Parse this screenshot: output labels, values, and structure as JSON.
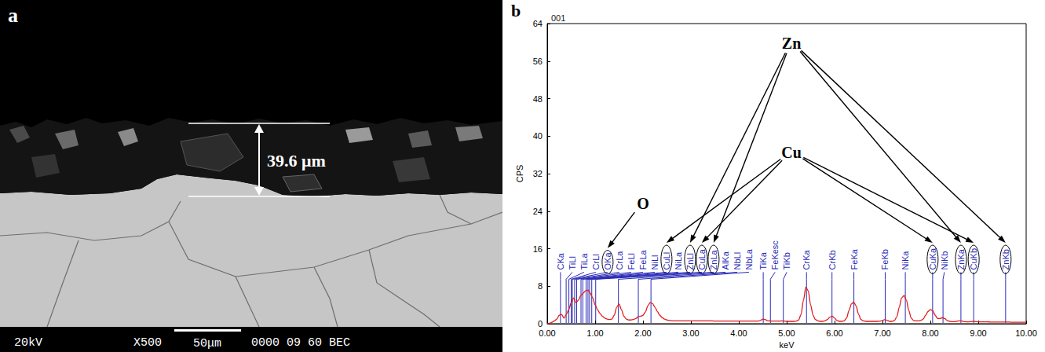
{
  "image_panel": {
    "panel_label": "a",
    "measurement": "39.6 μm",
    "info_bar": {
      "voltage": "20kV",
      "magnification": "X500",
      "scale_bar": "50μm",
      "code": "0000 09 60 BEC"
    }
  },
  "chart_data": {
    "type": "line",
    "panel_label": "b",
    "title": "001",
    "x_label": "keV",
    "y_label": "CPS",
    "color": "#e31a1c",
    "grid": false,
    "xlim": [
      0,
      10
    ],
    "xticks": [
      {
        "value": 0,
        "label": "0.00"
      },
      {
        "value": 1,
        "label": "1.00"
      },
      {
        "value": 2,
        "label": "2.00"
      },
      {
        "value": 3,
        "label": "3.00"
      },
      {
        "value": 4,
        "label": "4.00"
      },
      {
        "value": 5,
        "label": "5.00"
      },
      {
        "value": 6,
        "label": "6.00"
      },
      {
        "value": 7,
        "label": "7.00"
      },
      {
        "value": 8,
        "label": "8.00"
      },
      {
        "value": 9,
        "label": "9.00"
      },
      {
        "value": 10,
        "label": "10.00"
      }
    ],
    "ylim": [
      0,
      64
    ],
    "yticks": [
      0,
      8,
      16,
      24,
      32,
      40,
      48,
      56,
      64
    ],
    "x": [
      0,
      0.05,
      0.1,
      0.15,
      0.2,
      0.25,
      0.3,
      0.35,
      0.4,
      0.45,
      0.5,
      0.55,
      0.6,
      0.65,
      0.7,
      0.75,
      0.8,
      0.85,
      0.9,
      0.95,
      1,
      1.05,
      1.1,
      1.15,
      1.2,
      1.25,
      1.3,
      1.35,
      1.4,
      1.45,
      1.5,
      1.55,
      1.6,
      1.65,
      1.7,
      1.75,
      1.8,
      1.85,
      1.9,
      1.95,
      2,
      2.05,
      2.1,
      2.15,
      2.2,
      2.25,
      2.3,
      2.35,
      2.4,
      2.45,
      2.5,
      2.55,
      2.6,
      2.65,
      2.7,
      2.75,
      2.8,
      2.85,
      2.9,
      2.95,
      3,
      3.05,
      3.1,
      3.15,
      3.2,
      3.25,
      3.3,
      3.35,
      3.4,
      3.45,
      3.5,
      3.55,
      3.6,
      3.65,
      3.7,
      3.75,
      3.8,
      3.85,
      3.9,
      3.95,
      4,
      4.05,
      4.1,
      4.15,
      4.2,
      4.25,
      4.3,
      4.35,
      4.4,
      4.45,
      4.5,
      4.55,
      4.6,
      4.65,
      4.7,
      4.75,
      4.8,
      4.85,
      4.9,
      4.95,
      5,
      5.05,
      5.1,
      5.15,
      5.2,
      5.25,
      5.3,
      5.35,
      5.4,
      5.45,
      5.5,
      5.55,
      5.6,
      5.65,
      5.7,
      5.75,
      5.8,
      5.85,
      5.9,
      5.95,
      6,
      6.05,
      6.1,
      6.15,
      6.2,
      6.25,
      6.3,
      6.35,
      6.4,
      6.45,
      6.5,
      6.55,
      6.6,
      6.65,
      6.7,
      6.75,
      6.8,
      6.85,
      6.9,
      6.95,
      7,
      7.05,
      7.1,
      7.15,
      7.2,
      7.25,
      7.3,
      7.35,
      7.4,
      7.45,
      7.5,
      7.55,
      7.6,
      7.65,
      7.7,
      7.75,
      7.8,
      7.85,
      7.9,
      7.95,
      8,
      8.05,
      8.1,
      8.15,
      8.2,
      8.25,
      8.3,
      8.35,
      8.4,
      8.45,
      8.5,
      8.55,
      8.6,
      8.65,
      8.7,
      8.75,
      8.8,
      8.85,
      8.9,
      8.95,
      9,
      9.05,
      9.1,
      9.15,
      9.2,
      9.25,
      9.3,
      9.35,
      9.4,
      9.45,
      9.5,
      9.55,
      9.6,
      9.65,
      9.7,
      9.75,
      9.8,
      9.85,
      9.9,
      9.95,
      10
    ],
    "values": [
      0,
      0.1,
      0.3,
      0.6,
      1.0,
      1.8,
      2.0,
      1.2,
      2.0,
      3.0,
      4.5,
      5.5,
      4.5,
      5.0,
      6.0,
      6.5,
      7.0,
      7.2,
      6.5,
      5.5,
      4.0,
      3.0,
      2.2,
      1.6,
      1.2,
      1.0,
      0.9,
      1.0,
      1.8,
      3.5,
      4.2,
      3.0,
      1.6,
      1.0,
      0.8,
      0.8,
      0.9,
      1.1,
      1.5,
      1.6,
      1.8,
      2.5,
      3.8,
      4.5,
      4.3,
      3.5,
      2.6,
      1.8,
      1.3,
      1.0,
      0.8,
      0.7,
      0.65,
      0.6,
      0.6,
      0.6,
      0.6,
      0.6,
      0.6,
      0.6,
      0.6,
      0.6,
      0.6,
      0.6,
      0.6,
      0.6,
      0.6,
      0.6,
      0.6,
      0.6,
      0.55,
      0.55,
      0.55,
      0.55,
      0.55,
      0.55,
      0.55,
      0.55,
      0.55,
      0.55,
      0.55,
      0.55,
      0.55,
      0.55,
      0.55,
      0.55,
      0.55,
      0.55,
      0.55,
      0.7,
      1.0,
      0.9,
      0.6,
      0.6,
      0.55,
      0.55,
      0.55,
      0.55,
      0.6,
      0.55,
      0.5,
      0.5,
      0.5,
      0.5,
      0.55,
      0.8,
      2.0,
      5.0,
      7.8,
      7.0,
      4.0,
      1.8,
      0.9,
      0.6,
      0.5,
      0.5,
      0.6,
      0.9,
      1.4,
      1.6,
      1.2,
      0.7,
      0.5,
      0.5,
      0.6,
      1.2,
      2.8,
      4.2,
      4.6,
      3.8,
      2.0,
      0.9,
      0.6,
      0.5,
      0.5,
      0.5,
      0.5,
      0.5,
      0.5,
      0.55,
      0.7,
      0.9,
      0.7,
      0.5,
      0.5,
      0.7,
      1.5,
      3.5,
      5.5,
      6.0,
      5.0,
      2.8,
      1.2,
      0.7,
      0.6,
      0.6,
      0.7,
      1.0,
      1.8,
      2.6,
      3.0,
      2.8,
      1.8,
      1.1,
      1.1,
      1.3,
      1.1,
      0.7,
      0.5,
      0.45,
      0.45,
      0.5,
      0.6,
      0.6,
      0.45,
      0.4,
      0.4,
      0.45,
      0.5,
      0.45,
      0.4,
      0.4,
      0.4,
      0.4,
      0.4,
      0.35,
      0.35,
      0.35,
      0.35,
      0.35,
      0.35,
      0.35,
      0.35,
      0.35,
      0.3,
      0.3,
      0.3,
      0.3,
      0.3,
      0.3,
      0.3
    ],
    "peak_labels": [
      {
        "label": "CKa",
        "energy": 0.277
      },
      {
        "label": "TiLl",
        "energy": 0.395
      },
      {
        "label": "TiLa",
        "energy": 0.452
      },
      {
        "label": "CrLl",
        "energy": 0.5
      },
      {
        "label": "OKa",
        "energy": 0.525
      },
      {
        "label": "CrLa",
        "energy": 0.573
      },
      {
        "label": "FeLl",
        "energy": 0.615
      },
      {
        "label": "FeLa",
        "energy": 0.705
      },
      {
        "label": "NiLl",
        "energy": 0.743
      },
      {
        "label": "CuLl",
        "energy": 0.811
      },
      {
        "label": "NiLa",
        "energy": 0.851
      },
      {
        "label": "ZnLl",
        "energy": 0.884
      },
      {
        "label": "CuLa",
        "energy": 0.93
      },
      {
        "label": "ZnLa",
        "energy": 1.012
      },
      {
        "label": "AlKa",
        "energy": 1.486
      },
      {
        "label": "NbLl",
        "energy": 1.902
      },
      {
        "label": "NbLa",
        "energy": 2.166
      },
      {
        "label": "TiKa",
        "energy": 4.51
      },
      {
        "label": "FeKesc",
        "energy": 4.66
      },
      {
        "label": "TiKb",
        "energy": 4.93
      },
      {
        "label": "CrKa",
        "energy": 5.414
      },
      {
        "label": "CrKb",
        "energy": 5.946
      },
      {
        "label": "FeKa",
        "energy": 6.403
      },
      {
        "label": "FeKb",
        "energy": 7.057
      },
      {
        "label": "NiKa",
        "energy": 7.477
      },
      {
        "label": "CuKa",
        "energy": 8.047
      },
      {
        "label": "NiKb",
        "energy": 8.264
      },
      {
        "label": "ZnKa",
        "energy": 8.638
      },
      {
        "label": "CuKb",
        "energy": 8.904
      },
      {
        "label": "ZnKb",
        "energy": 9.571
      }
    ],
    "annotations": [
      {
        "text": "Zn",
        "targets": [
          "ZnLa",
          "ZnLl",
          "ZnKa",
          "ZnKb"
        ]
      },
      {
        "text": "Cu",
        "targets": [
          "CuLa",
          "CuLl",
          "CuKa",
          "CuKb"
        ]
      },
      {
        "text": "O",
        "targets": [
          "OKa"
        ]
      }
    ]
  }
}
